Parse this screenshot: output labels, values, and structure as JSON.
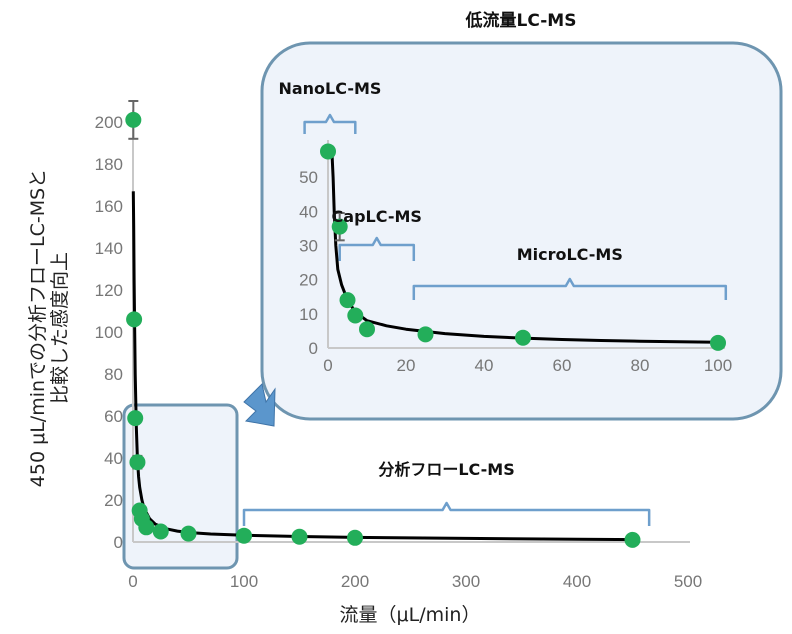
{
  "colors": {
    "point": "#23ae5a",
    "curve": "#000000",
    "axis": "#c8c8c8",
    "panel_fill": "#eef3fa",
    "panel_stroke": "#6e95b0",
    "bracket": "#6e9fcc",
    "arrow": "#5b96cc"
  },
  "chart_data": [
    {
      "id": "main",
      "type": "scatter",
      "xlabel": "流量（μL/min）",
      "ylabel_line1": "450 μL/minでの分析フローLC-MSと",
      "ylabel_line2": "比較した感度向上",
      "xlim": [
        0,
        500
      ],
      "ylim": [
        0,
        200
      ],
      "xticks": [
        0,
        100,
        200,
        300,
        400,
        500
      ],
      "yticks": [
        0,
        20,
        40,
        60,
        80,
        100,
        120,
        140,
        160,
        180,
        200
      ],
      "grid": false,
      "points": [
        {
          "x": 0.3,
          "y": 201,
          "err": 9
        },
        {
          "x": 1,
          "y": 106
        },
        {
          "x": 2,
          "y": 59
        },
        {
          "x": 4,
          "y": 38,
          "err": 3
        },
        {
          "x": 6,
          "y": 15
        },
        {
          "x": 8,
          "y": 11
        },
        {
          "x": 12,
          "y": 7
        },
        {
          "x": 25,
          "y": 5
        },
        {
          "x": 50,
          "y": 4
        },
        {
          "x": 100,
          "y": 3
        },
        {
          "x": 150,
          "y": 2.5
        },
        {
          "x": 200,
          "y": 2
        },
        {
          "x": 450,
          "y": 1
        }
      ],
      "curve": [
        [
          0.3,
          167
        ],
        [
          0.6,
          150
        ],
        [
          1,
          125
        ],
        [
          1.5,
          100
        ],
        [
          2,
          80
        ],
        [
          3,
          55
        ],
        [
          4,
          40
        ],
        [
          5,
          31
        ],
        [
          6,
          26
        ],
        [
          8,
          20
        ],
        [
          10,
          16
        ],
        [
          15,
          11
        ],
        [
          20,
          8.5
        ],
        [
          30,
          6.3
        ],
        [
          40,
          5.2
        ],
        [
          50,
          4.5
        ],
        [
          70,
          3.8
        ],
        [
          100,
          3.2
        ],
        [
          150,
          2.6
        ],
        [
          200,
          2.2
        ],
        [
          300,
          1.7
        ],
        [
          400,
          1.3
        ],
        [
          455,
          1.1
        ]
      ],
      "annotation": {
        "label": "分析フローLC-MS",
        "from": 100,
        "to": 465
      }
    },
    {
      "id": "inset",
      "type": "scatter",
      "title": "低流量LC-MS",
      "xlim": [
        0,
        100
      ],
      "ylim": [
        0,
        55
      ],
      "xticks": [
        0,
        20,
        40,
        60,
        80,
        100
      ],
      "yticks": [
        0,
        10,
        20,
        30,
        40,
        50
      ],
      "grid": false,
      "points": [
        {
          "x": 0,
          "y": 57.5
        },
        {
          "x": 3,
          "y": 35.5,
          "err": 4
        },
        {
          "x": 5,
          "y": 14
        },
        {
          "x": 7,
          "y": 9.5
        },
        {
          "x": 10,
          "y": 5.5
        },
        {
          "x": 25,
          "y": 4
        },
        {
          "x": 50,
          "y": 3
        },
        {
          "x": 100,
          "y": 1.5
        }
      ],
      "curve": [
        [
          1,
          57.5
        ],
        [
          1.3,
          50
        ],
        [
          1.6,
          40
        ],
        [
          2,
          30
        ],
        [
          2.5,
          23
        ],
        [
          3.5,
          18.5
        ],
        [
          5,
          14
        ],
        [
          7,
          10.5
        ],
        [
          10,
          8
        ],
        [
          15,
          6.5
        ],
        [
          20,
          5.5
        ],
        [
          30,
          4.2
        ],
        [
          40,
          3.4
        ],
        [
          50,
          2.9
        ],
        [
          60,
          2.5
        ],
        [
          70,
          2.2
        ],
        [
          80,
          2
        ],
        [
          90,
          1.8
        ],
        [
          100,
          1.7
        ]
      ],
      "annotations": [
        {
          "label": "NanoLC-MS",
          "from": -6,
          "to": 7
        },
        {
          "label": "CapLC-MS",
          "from": 3,
          "to": 22
        },
        {
          "label": "MicroLC-MS",
          "from": 22,
          "to": 102
        }
      ]
    }
  ]
}
